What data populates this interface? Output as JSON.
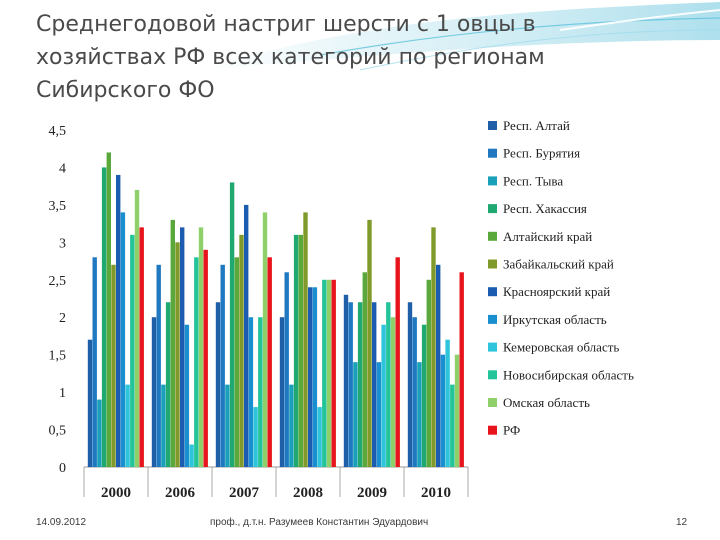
{
  "slide": {
    "title": "Среднегодовой настриг шерсти с 1 овцы в хозяйствах РФ всех категорий по регионам Сибирского ФО",
    "footer": {
      "date": "14.09.2012",
      "author": "проф., д.т.н. Разумеев Константин Эдуардович",
      "page": "12"
    }
  },
  "chart_data": {
    "type": "bar",
    "title": "",
    "xlabel": "",
    "ylabel": "",
    "ylim": [
      0,
      4.5
    ],
    "yticks": [
      "0",
      "0,5",
      "1",
      "1,5",
      "2",
      "2,5",
      "3",
      "3,5",
      "4",
      "4,5"
    ],
    "grid": false,
    "legend_position": "right",
    "categories": [
      "2000",
      "2006",
      "2007",
      "2008",
      "2009",
      "2010"
    ],
    "series": [
      {
        "name": "Респ. Алтай",
        "color": "#1f5fa8",
        "values": [
          1.7,
          2.0,
          2.2,
          2.0,
          2.3,
          2.2
        ]
      },
      {
        "name": "Респ. Бурятия",
        "color": "#1f78c0",
        "values": [
          2.8,
          2.7,
          2.7,
          2.6,
          2.2,
          2.0
        ]
      },
      {
        "name": "Респ. Тыва",
        "color": "#1aa0b8",
        "values": [
          0.9,
          1.1,
          1.1,
          1.1,
          1.4,
          1.4
        ]
      },
      {
        "name": "Респ. Хакассия",
        "color": "#1fa870",
        "values": [
          4.0,
          2.2,
          3.8,
          3.1,
          2.2,
          1.9
        ]
      },
      {
        "name": "Алтайский край",
        "color": "#5aa83c",
        "values": [
          4.2,
          3.3,
          2.8,
          3.1,
          2.6,
          2.5
        ]
      },
      {
        "name": "Забайкальский край",
        "color": "#7f9a2a",
        "values": [
          2.7,
          3.0,
          3.1,
          3.4,
          3.3,
          3.2
        ]
      },
      {
        "name": "Красноярский край",
        "color": "#1b5cb0",
        "values": [
          3.9,
          3.2,
          3.5,
          2.4,
          2.2,
          2.7
        ]
      },
      {
        "name": "Иркутская область",
        "color": "#1a8fd0",
        "values": [
          3.4,
          1.9,
          2.0,
          2.4,
          1.4,
          1.5
        ]
      },
      {
        "name": "Кемеровская область",
        "color": "#2ec4dc",
        "values": [
          1.1,
          0.3,
          0.8,
          0.8,
          1.9,
          1.7
        ]
      },
      {
        "name": "Новосибирская область",
        "color": "#24c49a",
        "values": [
          3.1,
          2.8,
          2.0,
          2.5,
          2.2,
          1.1
        ]
      },
      {
        "name": "Омская область",
        "color": "#8fd06a",
        "values": [
          3.7,
          3.2,
          3.4,
          2.5,
          2.0,
          1.5
        ]
      },
      {
        "name": "РФ",
        "color": "#e8141c",
        "values": [
          3.2,
          2.9,
          2.8,
          2.5,
          2.8,
          2.6
        ]
      }
    ]
  }
}
